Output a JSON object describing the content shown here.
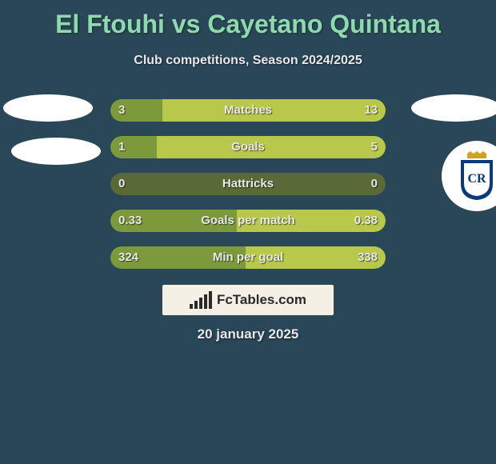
{
  "title": "El Ftouhi vs Cayetano Quintana",
  "subtitle": "Club competitions, Season 2024/2025",
  "date": "20 january 2025",
  "logo_text": "FcTables.com",
  "colors": {
    "background": "#2a4758",
    "title": "#8edaaf",
    "text": "#e8e8e8",
    "track": "#5a6a36",
    "fill_left": "#7c9a3c",
    "fill_right": "#b8c84a",
    "avatar": "#ffffff",
    "logo_bg": "#f4f0e6",
    "logo_fg": "#2a2a2a",
    "badge_blue": "#0b3a7a",
    "badge_gold": "#d4a020"
  },
  "club_badge": {
    "crown_fill": "#d4a020",
    "shield_fill": "#0b3a7a",
    "shield_stroke": "#0b3a7a",
    "inner_bg": "#ffffff",
    "letters": "CR"
  },
  "rows": [
    {
      "label": "Matches",
      "left": "3",
      "right": "13",
      "left_ratio": 0.19,
      "right_ratio": 0.81
    },
    {
      "label": "Goals",
      "left": "1",
      "right": "5",
      "left_ratio": 0.17,
      "right_ratio": 0.83
    },
    {
      "label": "Hattricks",
      "left": "0",
      "right": "0",
      "left_ratio": 0.0,
      "right_ratio": 0.0
    },
    {
      "label": "Goals per match",
      "left": "0.33",
      "right": "0.38",
      "left_ratio": 0.46,
      "right_ratio": 0.54
    },
    {
      "label": "Min per goal",
      "left": "324",
      "right": "338",
      "left_ratio": 0.49,
      "right_ratio": 0.51
    }
  ],
  "logo_bars": [
    6,
    10,
    14,
    18,
    22
  ]
}
